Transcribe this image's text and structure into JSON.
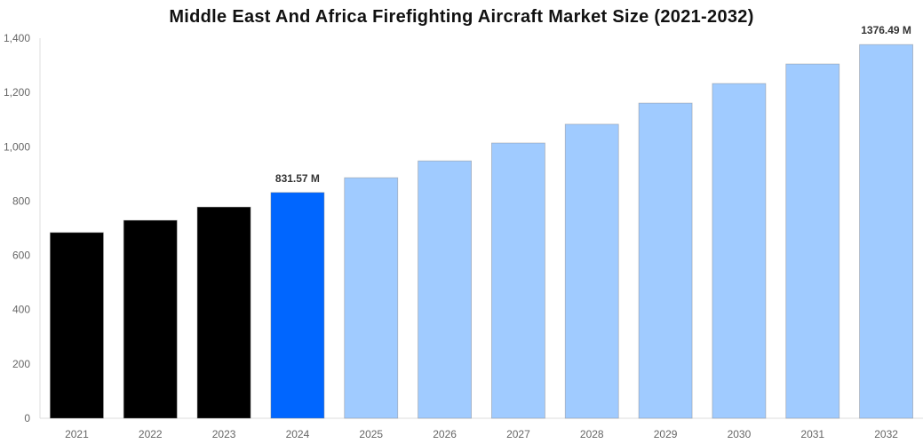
{
  "chart_data": {
    "type": "bar",
    "title": "Middle East And Africa Firefighting Aircraft Market Size (2021-2032)",
    "xlabel": "",
    "ylabel": "",
    "ylim": [
      0,
      1400
    ],
    "yticks": [
      0,
      200,
      400,
      600,
      800,
      1000,
      1200,
      1400
    ],
    "ytick_labels": [
      "0",
      "200",
      "400",
      "600",
      "800",
      "1,000",
      "1,200",
      "1,400"
    ],
    "grid": false,
    "categories": [
      "2021",
      "2022",
      "2023",
      "2024",
      "2025",
      "2026",
      "2027",
      "2028",
      "2029",
      "2030",
      "2031",
      "2032"
    ],
    "values": [
      684,
      729,
      778,
      831.57,
      886,
      948,
      1014,
      1083,
      1161,
      1233,
      1305,
      1376.49
    ],
    "colors": [
      "#000000",
      "#000000",
      "#000000",
      "#0066ff",
      "#a0cbff",
      "#a0cbff",
      "#a0cbff",
      "#a0cbff",
      "#a0cbff",
      "#a0cbff",
      "#a0cbff",
      "#a0cbff"
    ],
    "data_labels": {
      "3": "831.57 M",
      "11": "1376.49 M"
    }
  }
}
